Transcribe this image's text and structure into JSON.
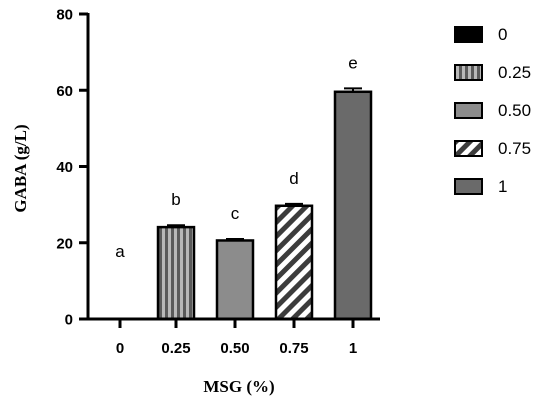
{
  "chart_data": {
    "type": "bar",
    "categories": [
      "0",
      "0.25",
      "0.50",
      "0.75",
      "1"
    ],
    "values": [
      0,
      24.1,
      20.6,
      29.7,
      59.6
    ],
    "errors": [
      0,
      0.5,
      0.4,
      0.5,
      0.9
    ],
    "letters": [
      "a",
      "b",
      "c",
      "d",
      "e"
    ],
    "xlabel": "MSG (%)",
    "ylabel": "GABA (g/L)",
    "ylim": [
      0,
      80
    ],
    "yticks": [
      0,
      20,
      40,
      60,
      80
    ],
    "grid": false,
    "legend": {
      "placement": "right",
      "entries": [
        "0",
        "0.25",
        "0.50",
        "0.75",
        "1"
      ]
    },
    "colors": {
      "bar0": "#000000",
      "bar1_base": "#5a5a5a",
      "bar1_stripe": "#b8b8b8",
      "bar2": "#8c8c8c",
      "bar3_base": "#ffffff",
      "bar3_stripe": "#3c3c3c",
      "bar4": "#6a6a6a"
    }
  }
}
